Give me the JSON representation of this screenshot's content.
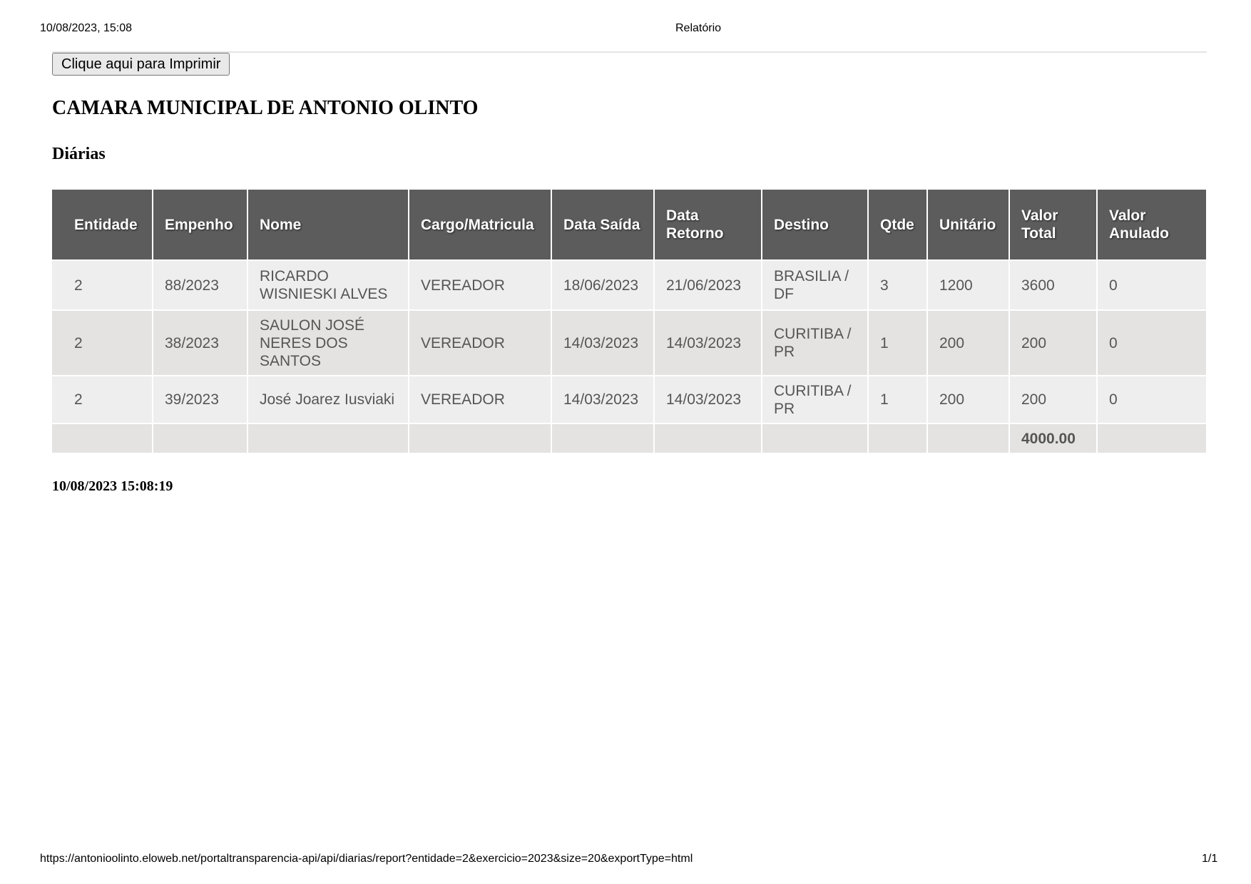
{
  "print_header": {
    "datetime": "10/08/2023, 15:08",
    "title": "Relatório"
  },
  "print_button": "Clique aqui para Imprimir",
  "title": "CAMARA MUNICIPAL DE ANTONIO OLINTO",
  "subtitle": "Diárias",
  "table": {
    "headers": [
      "Entidade",
      "Empenho",
      "Nome",
      "Cargo/Matricula",
      "Data Saída",
      "Data Retorno",
      "Destino",
      "Qtde",
      "Unitário",
      "Valor Total",
      "Valor Anulado"
    ],
    "rows": [
      [
        "2",
        "88/2023",
        "RICARDO WISNIESKI ALVES",
        "VEREADOR",
        "18/06/2023",
        "21/06/2023",
        "BRASILIA / DF",
        "3",
        "1200",
        "3600",
        "0"
      ],
      [
        "2",
        "38/2023",
        "SAULON JOSÉ NERES DOS SANTOS",
        "VEREADOR",
        "14/03/2023",
        "14/03/2023",
        "CURITIBA / PR",
        "1",
        "200",
        "200",
        "0"
      ],
      [
        "2",
        "39/2023",
        "José Joarez Iusviaki",
        "VEREADOR",
        "14/03/2023",
        "14/03/2023",
        "CURITIBA / PR",
        "1",
        "200",
        "200",
        "0"
      ]
    ],
    "total_valor": "4000.00"
  },
  "generated_at": "10/08/2023 15:08:19",
  "print_footer": {
    "url": "https://antonioolinto.eloweb.net/portaltransparencia-api/api/diarias/report?entidade=2&exercicio=2023&size=20&exportType=html",
    "page": "1/1"
  }
}
